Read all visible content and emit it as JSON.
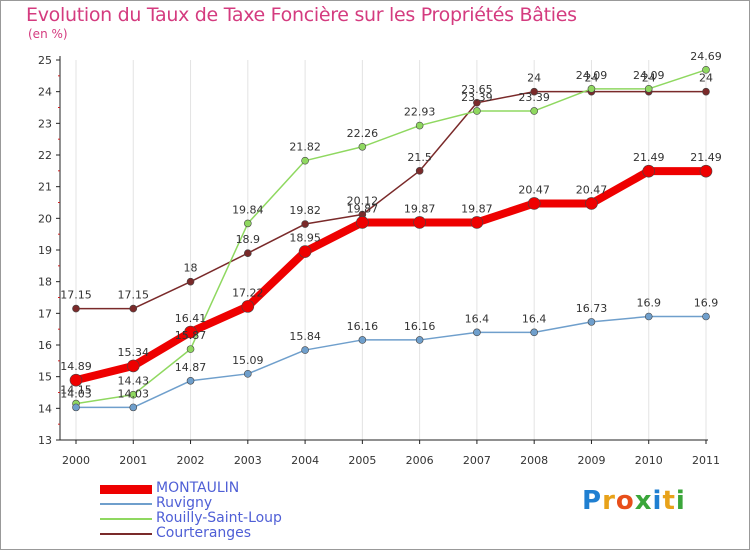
{
  "header": {
    "title": "Evolution du Taux de Taxe Foncière sur les Propriétés Bâties",
    "unit": "(en %)"
  },
  "logo": {
    "letters": [
      "P",
      "r",
      "o",
      "x",
      "i",
      "t",
      "i"
    ],
    "colors": [
      "#1f7fd1",
      "#e8a21a",
      "#e84e1a",
      "#3aa63a",
      "#1f7fd1",
      "#e8a21a",
      "#3aa63a"
    ]
  },
  "chart_data": {
    "type": "line",
    "title": "Evolution du Taux de Taxe Foncière sur les Propriétés Bâties",
    "ylabel": "(en %)",
    "xlabel": "",
    "ylim": [
      13,
      25
    ],
    "y_ticks": [
      13,
      14,
      15,
      16,
      17,
      18,
      19,
      20,
      21,
      22,
      23,
      24,
      25
    ],
    "grid": "vertical",
    "legend_position": "bottom-left",
    "x": [
      "2000",
      "2001",
      "2002",
      "2003",
      "2004",
      "2005",
      "2006",
      "2007",
      "2008",
      "2009",
      "2010",
      "2011"
    ],
    "series": [
      {
        "name": "Courteranges",
        "color": "#7a2a2a",
        "width": 1.5,
        "marker": 3.5,
        "values": [
          17.15,
          17.15,
          18,
          18.9,
          19.82,
          20.12,
          21.5,
          23.65,
          24,
          24,
          24,
          24
        ],
        "labels": [
          "17.15",
          "17.15",
          "18",
          "18.9",
          "19.82",
          "20.12",
          "21.5",
          "23.65",
          "24",
          "24",
          "24",
          "24"
        ]
      },
      {
        "name": "Rouilly-Saint-Loup",
        "color": "#8fd860",
        "width": 1.5,
        "marker": 3.5,
        "values": [
          14.15,
          14.43,
          15.87,
          19.84,
          21.82,
          22.26,
          22.93,
          23.39,
          23.39,
          24.09,
          24.09,
          24.69
        ],
        "labels": [
          "14.15",
          "14.43",
          "15.87",
          "19.84",
          "21.82",
          "22.26",
          "22.93",
          "23.39",
          "23.39",
          "24.09",
          "24.09",
          "24.69"
        ]
      },
      {
        "name": "Ruvigny",
        "color": "#6f9fcc",
        "width": 1.5,
        "marker": 3.5,
        "values": [
          14.03,
          14.03,
          14.87,
          15.09,
          15.84,
          16.16,
          16.16,
          16.4,
          16.4,
          16.73,
          16.9,
          16.9
        ],
        "labels": [
          "14.03",
          "14.03",
          "14.87",
          "15.09",
          "15.84",
          "16.16",
          "16.16",
          "16.4",
          "16.4",
          "16.73",
          "16.9",
          "16.9"
        ]
      },
      {
        "name": "MONTAULIN",
        "color": "#ee0000",
        "width": 8,
        "marker": 6,
        "values": [
          14.89,
          15.34,
          16.41,
          17.22,
          18.95,
          19.87,
          19.87,
          19.87,
          20.47,
          20.47,
          21.49,
          21.49
        ],
        "labels": [
          "14.89",
          "15.34",
          "16.41",
          "17.22",
          "18.95",
          "19.87",
          "19.87",
          "19.87",
          "20.47",
          "20.47",
          "21.49",
          "21.49"
        ]
      }
    ],
    "legend_order": [
      "MONTAULIN",
      "Ruvigny",
      "Rouilly-Saint-Loup",
      "Courteranges"
    ]
  }
}
